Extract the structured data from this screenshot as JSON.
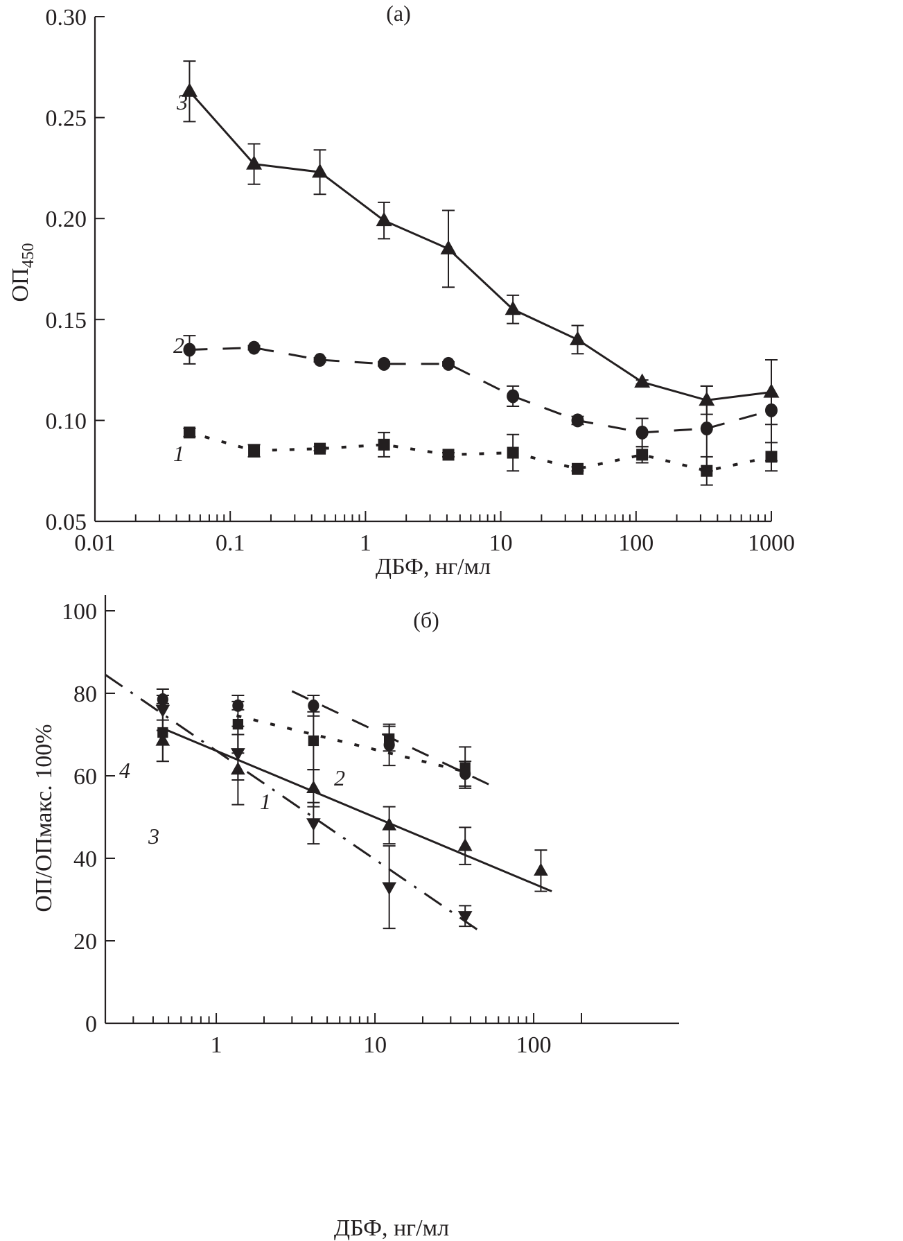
{
  "colors": {
    "ink": "#231f20",
    "background": "#ffffff"
  },
  "chart_data": [
    {
      "id": "panel-a",
      "type": "line",
      "panel_label": "(a)",
      "title": "",
      "xlabel": "ДБФ, нг/мл",
      "ylabel_main": "ОП",
      "ylabel_sub": "450",
      "xscale": "log",
      "xlim": [
        0.01,
        1000
      ],
      "ylim": [
        0.05,
        0.3
      ],
      "x_ticks": [
        0.01,
        0.1,
        1,
        10,
        100,
        1000
      ],
      "x_tick_labels": [
        "0.01",
        "0.1",
        "1",
        "10",
        "100",
        "1000"
      ],
      "y_ticks": [
        0.05,
        0.1,
        0.15,
        0.2,
        0.25,
        0.3
      ],
      "y_tick_labels": [
        "0.05",
        "0.10",
        "0.15",
        "0.20",
        "0.25",
        "0.30"
      ],
      "grid": false,
      "legend": "inline numbered labels at left of curves",
      "x": [
        0.05,
        0.15,
        0.46,
        1.37,
        4.1,
        12.3,
        37,
        111,
        333,
        1000
      ],
      "series": [
        {
          "name": "1",
          "marker": "square",
          "line": "dotted",
          "label_pos": "left",
          "values": [
            0.094,
            0.085,
            0.086,
            0.088,
            0.083,
            0.084,
            0.076,
            0.083,
            0.075,
            0.082
          ],
          "errors": [
            0.002,
            0.003,
            0.001,
            0.006,
            0.001,
            0.009,
            0.001,
            0.004,
            0.007,
            0.007
          ]
        },
        {
          "name": "2",
          "marker": "circle",
          "line": "dashed",
          "label_pos": "left",
          "values": [
            0.135,
            0.136,
            0.13,
            0.128,
            0.128,
            0.112,
            0.1,
            0.094,
            0.096,
            0.105
          ],
          "errors": [
            0.007,
            0.001,
            0.001,
            0.001,
            0.001,
            0.005,
            0.002,
            0.007,
            0.021,
            0.025
          ]
        },
        {
          "name": "3",
          "marker": "triangle-up",
          "line": "solid",
          "label_pos": "left",
          "values": [
            0.263,
            0.227,
            0.223,
            0.199,
            0.185,
            0.155,
            0.14,
            0.119,
            0.11,
            0.114
          ],
          "errors": [
            0.015,
            0.01,
            0.011,
            0.009,
            0.019,
            0.007,
            0.007,
            0.001,
            0.007,
            0.016
          ]
        }
      ]
    },
    {
      "id": "panel-b",
      "type": "scatter",
      "panel_label": "(б)",
      "title": "",
      "xlabel": "ДБФ, нг/мл",
      "ylabel": "ОП/ОПмакс. 100%",
      "xscale": "log",
      "xlim": [
        0.2,
        200
      ],
      "ylim": [
        0,
        100
      ],
      "x_ticks": [
        1,
        10,
        100
      ],
      "x_tick_labels": [
        "1",
        "10",
        "100"
      ],
      "y_ticks": [
        0,
        20,
        40,
        60,
        80,
        100
      ],
      "y_tick_labels": [
        "0",
        "20",
        "40",
        "60",
        "80",
        "100"
      ],
      "grid": false,
      "legend": "inline numbered labels near fit lines",
      "series": [
        {
          "name": "1",
          "marker": "square",
          "line": "dotted",
          "x": [
            0.46,
            1.37,
            4.1,
            12.3,
            37
          ],
          "values": [
            70.5,
            72.5,
            68.5,
            69,
            62
          ],
          "errors": [
            7,
            7,
            7,
            3,
            5
          ],
          "fit": {
            "x": [
              1.37,
              37
            ],
            "y": [
              74.5,
              61
            ]
          }
        },
        {
          "name": "2",
          "marker": "circle",
          "line": "dashed",
          "x": [
            0.46,
            1.37,
            4.1,
            12.3,
            37
          ],
          "values": [
            78.5,
            77,
            77,
            67.5,
            60.5
          ],
          "errors": [
            1,
            1,
            2.5,
            5,
            3
          ],
          "fit": {
            "x": [
              3.0,
              55
            ],
            "y": [
              80.5,
              57.5
            ]
          }
        },
        {
          "name": "3",
          "marker": "triangle-up",
          "line": "solid",
          "x": [
            0.46,
            1.37,
            4.1,
            12.3,
            37,
            111
          ],
          "values": [
            68.5,
            61.5,
            57,
            48,
            43,
            37
          ],
          "errors": [
            5,
            8.5,
            4.5,
            4.5,
            4.5,
            5
          ],
          "fit": {
            "x": [
              0.46,
              130
            ],
            "y": [
              71.5,
              32
            ]
          }
        },
        {
          "name": "4",
          "marker": "triangle-down",
          "line": "dashdot",
          "x": [
            0.46,
            1.37,
            4.1,
            12.3,
            37
          ],
          "values": [
            76,
            65.5,
            48.5,
            33,
            26
          ],
          "errors": [
            5,
            6.5,
            5,
            10,
            2.5
          ],
          "fit": {
            "x": [
              0.2,
              45
            ],
            "y": [
              84.5,
              22.5
            ]
          }
        }
      ]
    }
  ]
}
